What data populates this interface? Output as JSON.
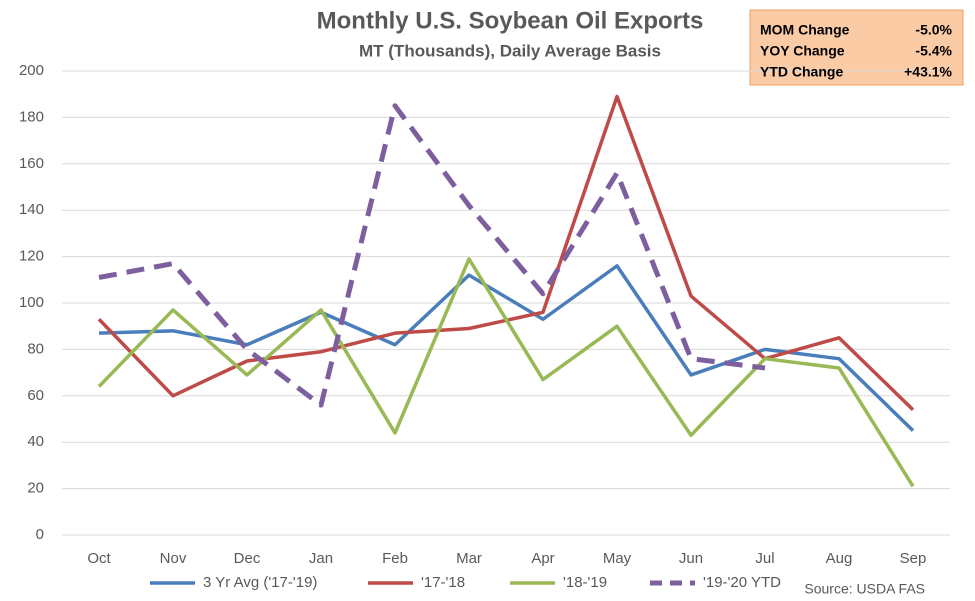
{
  "chart_data": {
    "type": "line",
    "title": "Monthly U.S. Soybean Oil Exports",
    "subtitle": "MT (Thousands), Daily Average Basis",
    "categories": [
      "Oct",
      "Nov",
      "Dec",
      "Jan",
      "Feb",
      "Mar",
      "Apr",
      "May",
      "Jun",
      "Jul",
      "Aug",
      "Sep"
    ],
    "series": [
      {
        "name": "3 Yr Avg ('17-'19)",
        "color": "#4a7ebb",
        "dashed": false,
        "values": [
          87,
          88,
          82,
          96,
          82,
          112,
          93,
          116,
          69,
          80,
          76,
          45
        ]
      },
      {
        "name": "'17-'18",
        "color": "#be4b48",
        "dashed": false,
        "values": [
          93,
          60,
          75,
          79,
          87,
          89,
          96,
          189,
          103,
          76,
          85,
          54
        ]
      },
      {
        "name": "'18-'19",
        "color": "#98b954",
        "dashed": false,
        "values": [
          64,
          97,
          69,
          97,
          44,
          119,
          67,
          90,
          43,
          76,
          72,
          21
        ]
      },
      {
        "name": "'19-'20 YTD",
        "color": "#7d5fa0",
        "dashed": true,
        "values": [
          111,
          117,
          80,
          56,
          185,
          142,
          104,
          156,
          76,
          72,
          null,
          null
        ]
      }
    ],
    "ylim": [
      0,
      200
    ],
    "yticks": [
      0,
      20,
      40,
      60,
      80,
      100,
      120,
      140,
      160,
      180,
      200
    ],
    "grid": true,
    "info_box": [
      {
        "label": "MOM Change",
        "value": "-5.0%"
      },
      {
        "label": "YOY Change",
        "value": "-5.4%"
      },
      {
        "label": "YTD Change",
        "value": "+43.1%"
      }
    ],
    "source": "Source: USDA FAS"
  }
}
